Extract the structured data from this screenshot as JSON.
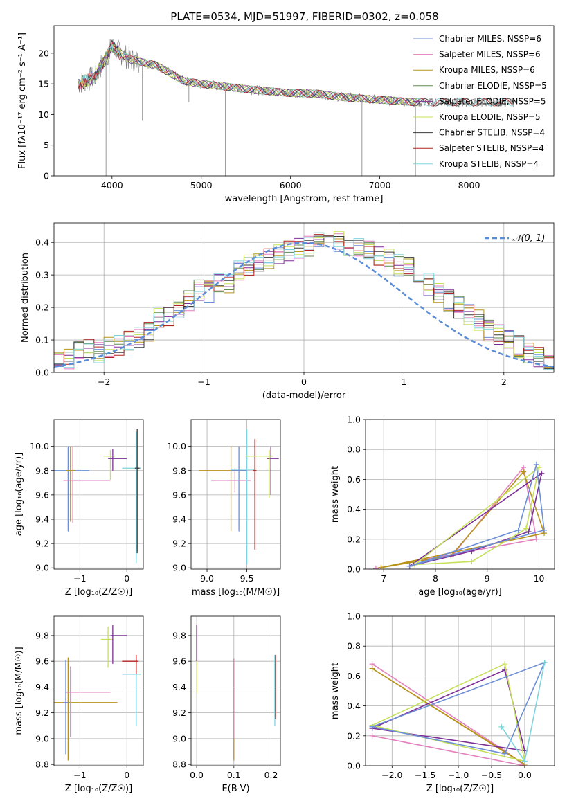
{
  "title": "PLATE=0534, MJD=51997, FIBERID=0302, z=0.058",
  "series_colors": [
    "#6b8ed6",
    "#e37fbd",
    "#b8931a",
    "#5f8a4e",
    "#7c2f96",
    "#c6e05a",
    "#3a3a3a",
    "#b22222",
    "#7fd3dc"
  ],
  "chart_data": [
    {
      "id": "spectrum",
      "type": "line",
      "title": "PLATE=0534, MJD=51997, FIBERID=0302, z=0.058",
      "xlabel": "wavelength [Angstrom, rest frame]",
      "ylabel": "Flux [fλ10⁻¹⁷ erg cm⁻² s⁻¹ A⁻¹]",
      "xlim": [
        3350,
        8950
      ],
      "ylim": [
        0,
        24.5
      ],
      "xticks": [
        4000,
        5000,
        6000,
        7000,
        8000
      ],
      "xticklabels": [
        "4000",
        "5000",
        "6000",
        "7000",
        "8000"
      ],
      "yticks": [
        0,
        5,
        10,
        15,
        20
      ],
      "yticklabels": [
        "0",
        "5",
        "10",
        "15",
        "20"
      ],
      "legend_position": "top-right",
      "legend": [
        "Chabrier MILES, NSSP=6",
        "Salpeter MILES, NSSP=6",
        "Kroupa MILES, NSSP=6",
        "Chabrier ELODIE, NSSP=5",
        "Salpeter ELODIE, NSSP=5",
        "Kroupa ELODIE, NSSP=5",
        "Chabrier STELIB, NSSP=4",
        "Salpeter STELIB, NSSP=4",
        "Kroupa STELIB, NSSP=4"
      ],
      "data_trend": {
        "x": [
          3600,
          3800,
          4000,
          4200,
          4500,
          4800,
          5000,
          5300,
          5600,
          6000,
          6300,
          6600,
          6900,
          7200,
          7400
        ],
        "y": [
          15,
          16,
          21,
          19,
          18,
          15.5,
          15,
          14.5,
          14,
          13.5,
          13.4,
          12.8,
          12.5,
          12.2,
          12
        ]
      }
    },
    {
      "id": "residuals",
      "type": "histogram",
      "xlabel": "(data-model)/error",
      "ylabel": "Normed distribution",
      "xlim": [
        -2.5,
        2.5
      ],
      "ylim": [
        0,
        0.46
      ],
      "xticks": [
        -2,
        -1,
        0,
        1,
        2
      ],
      "xticklabels": [
        "−2",
        "−1",
        "0",
        "1",
        "2"
      ],
      "yticks": [
        0,
        0.1,
        0.2,
        0.3,
        0.4
      ],
      "yticklabels": [
        "0.0",
        "0.1",
        "0.2",
        "0.3",
        "0.4"
      ],
      "legend": [
        "𝒩(0, 1)"
      ],
      "legend_position": "top-right",
      "bin_width": 0.1,
      "hist_values": [
        0.03,
        0.04,
        0.06,
        0.07,
        0.06,
        0.08,
        0.08,
        0.1,
        0.11,
        0.13,
        0.17,
        0.17,
        0.2,
        0.22,
        0.25,
        0.25,
        0.27,
        0.28,
        0.31,
        0.33,
        0.34,
        0.35,
        0.36,
        0.37,
        0.38,
        0.39,
        0.4,
        0.4,
        0.4,
        0.39,
        0.39,
        0.37,
        0.36,
        0.35,
        0.33,
        0.32,
        0.29,
        0.27,
        0.25,
        0.22,
        0.2,
        0.18,
        0.16,
        0.13,
        0.12,
        0.1,
        0.08,
        0.06,
        0.05,
        0.03
      ]
    },
    {
      "id": "age-vs-Z",
      "type": "errorbar",
      "xlabel": "Z [log₁₀(Z/Z☉)]",
      "ylabel": "age  [log₁₀(age/yr)]",
      "xlim": [
        -1.55,
        0.35
      ],
      "ylim": [
        8.99,
        10.22
      ],
      "xticks": [
        -1,
        0
      ],
      "xticklabels": [
        "−1",
        "0"
      ],
      "yticks": [
        9.0,
        9.2,
        9.4,
        9.6,
        9.8,
        10.0
      ],
      "yticklabels": [
        "9.0",
        "9.2",
        "9.4",
        "9.6",
        "9.8",
        "10.0"
      ],
      "points": [
        {
          "x": -1.25,
          "y": 9.8,
          "xerr": [
            0.3,
            0.45
          ],
          "yerr": [
            0.5,
            0.2
          ],
          "c": 0
        },
        {
          "x": -1.15,
          "y": 9.72,
          "xerr": [
            0.2,
            0.8
          ],
          "yerr": [
            0.35,
            0.28
          ],
          "c": 1
        },
        {
          "x": -0.35,
          "y": 9.92,
          "xerr": [
            0.15,
            0.1
          ],
          "yerr": [
            0.2,
            0.05
          ],
          "c": 5
        },
        {
          "x": -0.3,
          "y": 9.9,
          "xerr": [
            0.1,
            0.3
          ],
          "yerr": [
            0.1,
            0.08
          ],
          "c": 4
        },
        {
          "x": 0.2,
          "y": 9.82,
          "xerr": [
            0.3,
            0.1
          ],
          "yerr": [
            0.78,
            0.3
          ],
          "c": 8
        },
        {
          "x": 0.22,
          "y": 9.82,
          "xerr": [
            0.05,
            0.05
          ],
          "yerr": [
            0.7,
            0.32
          ],
          "c": 6
        },
        {
          "x": -1.2,
          "y": 9.8,
          "xerr": [
            0.1,
            0.1
          ],
          "yerr": [
            0.42,
            0.2
          ],
          "c": 2
        }
      ]
    },
    {
      "id": "age-vs-mass",
      "type": "errorbar",
      "xlabel": "mass [log₁₀(M/M☉)]",
      "ylabel": "",
      "xlim": [
        8.8,
        9.92
      ],
      "ylim": [
        8.99,
        10.22
      ],
      "xticks": [
        9.0,
        9.5
      ],
      "xticklabels": [
        "9.0",
        "9.5"
      ],
      "yticks": [
        9.0,
        9.2,
        9.4,
        9.6,
        9.8,
        10.0
      ],
      "yticklabels": [
        "9.0",
        "9.2",
        "9.4",
        "9.6",
        "9.8",
        "10.0"
      ],
      "points": [
        {
          "x": 9.3,
          "y": 9.8,
          "xerr": [
            0.4,
            0.2
          ],
          "yerr": [
            0.5,
            0.2
          ],
          "c": 2
        },
        {
          "x": 9.35,
          "y": 9.72,
          "xerr": [
            0.3,
            0.2
          ],
          "yerr": [
            0.1,
            0.1
          ],
          "c": 1
        },
        {
          "x": 9.5,
          "y": 9.81,
          "xerr": [
            0.2,
            0.1
          ],
          "yerr": [
            0.78,
            0.33
          ],
          "c": 8
        },
        {
          "x": 9.6,
          "y": 9.8,
          "xerr": [
            0.02,
            0.02
          ],
          "yerr": [
            0.65,
            0.26
          ],
          "c": 7
        },
        {
          "x": 9.8,
          "y": 9.9,
          "xerr": [
            0.05,
            0.1
          ],
          "yerr": [
            0.3,
            0.1
          ],
          "c": 4
        },
        {
          "x": 9.78,
          "y": 9.92,
          "xerr": [
            0.3,
            0.05
          ],
          "yerr": [
            0.35,
            0.05
          ],
          "c": 5
        },
        {
          "x": 9.4,
          "y": 9.8,
          "xerr": [
            0.1,
            0.1
          ],
          "yerr": [
            0.5,
            0.2
          ],
          "c": 0
        }
      ]
    },
    {
      "id": "weight-vs-age",
      "type": "line",
      "xlabel": "age  [log₁₀(age/yr)]",
      "ylabel": "mass weight",
      "xlim": [
        6.65,
        10.3
      ],
      "ylim": [
        0,
        1.0
      ],
      "xticks": [
        7,
        8,
        9,
        10
      ],
      "xticklabels": [
        "7",
        "8",
        "9",
        "10"
      ],
      "yticks": [
        0,
        0.2,
        0.4,
        0.6,
        0.8,
        1.0
      ],
      "yticklabels": [
        "0.0",
        "0.2",
        "0.4",
        "0.6",
        "0.8",
        "1.0"
      ],
      "series": [
        {
          "c": 1,
          "x": [
            6.85,
            8.35,
            9.7,
            9.95,
            6.85
          ],
          "y": [
            0.005,
            0.1,
            0.68,
            0.2,
            0.005
          ]
        },
        {
          "c": 2,
          "x": [
            6.95,
            8.3,
            9.7,
            10.1,
            6.95
          ],
          "y": [
            0.01,
            0.09,
            0.65,
            0.24,
            0.01
          ]
        },
        {
          "c": 4,
          "x": [
            7.5,
            8.7,
            9.8,
            10.05,
            7.5
          ],
          "y": [
            0.02,
            0.12,
            0.25,
            0.64,
            0.02
          ]
        },
        {
          "c": 5,
          "x": [
            7.6,
            8.7,
            9.75,
            10.0,
            7.6
          ],
          "y": [
            0.03,
            0.05,
            0.27,
            0.68,
            0.03
          ]
        },
        {
          "c": 0,
          "x": [
            7.5,
            9.6,
            9.95,
            10.1,
            7.5
          ],
          "y": [
            0.02,
            0.26,
            0.7,
            0.26,
            0.02
          ]
        }
      ]
    },
    {
      "id": "mass-vs-Z",
      "type": "errorbar",
      "xlabel": "Z [log₁₀(Z/Z☉)]",
      "ylabel": "mass [log₁₀(M/M☉)]",
      "xlim": [
        -1.55,
        0.35
      ],
      "ylim": [
        8.79,
        9.95
      ],
      "xticks": [
        -1,
        0
      ],
      "xticklabels": [
        "−1",
        "0"
      ],
      "yticks": [
        8.8,
        9.0,
        9.2,
        9.4,
        9.6,
        9.8
      ],
      "yticklabels": [
        "8.8",
        "9.0",
        "9.2",
        "9.4",
        "9.6",
        "9.8"
      ],
      "points": [
        {
          "x": -1.25,
          "y": 9.28,
          "xerr": [
            0.3,
            1.05
          ],
          "yerr": [
            0.45,
            0.35
          ],
          "c": 2
        },
        {
          "x": -1.2,
          "y": 9.36,
          "xerr": [
            0.1,
            0.85
          ],
          "yerr": [
            0.35,
            0.2
          ],
          "c": 1
        },
        {
          "x": -0.4,
          "y": 9.77,
          "xerr": [
            0.15,
            0.1
          ],
          "yerr": [
            0.22,
            0.1
          ],
          "c": 5
        },
        {
          "x": -0.3,
          "y": 9.8,
          "xerr": [
            0.05,
            0.3
          ],
          "yerr": [
            0.22,
            0.08
          ],
          "c": 4
        },
        {
          "x": 0.2,
          "y": 9.5,
          "xerr": [
            0.3,
            0.1
          ],
          "yerr": [
            0.4,
            0.1
          ],
          "c": 8
        },
        {
          "x": 0.2,
          "y": 9.6,
          "xerr": [
            0.3,
            0.05
          ],
          "yerr": [
            0.1,
            0.05
          ],
          "c": 7
        },
        {
          "x": -1.3,
          "y": 9.28,
          "xerr": [
            0.05,
            0.05
          ],
          "yerr": [
            0.4,
            0.33
          ],
          "c": 0
        }
      ]
    },
    {
      "id": "mass-vs-ebv",
      "type": "errorbar",
      "xlabel": "E(B-V)",
      "ylabel": "",
      "xlim": [
        -0.015,
        0.225
      ],
      "ylim": [
        8.79,
        9.95
      ],
      "xticks": [
        0.0,
        0.1,
        0.2
      ],
      "xticklabels": [
        "0.0",
        "0.1",
        "0.2"
      ],
      "yticks": [
        8.8,
        9.0,
        9.2,
        9.4,
        9.6,
        9.8
      ],
      "yticklabels": [
        "8.8",
        "9.0",
        "9.2",
        "9.4",
        "9.6",
        "9.8"
      ],
      "points": [
        {
          "x": 0.0,
          "y": 9.65,
          "xerr": [
            0,
            0
          ],
          "yerr": [
            0.3,
            0.22
          ],
          "c": 5
        },
        {
          "x": 0.0,
          "y": 9.7,
          "xerr": [
            0,
            0
          ],
          "yerr": [
            0.1,
            0.18
          ],
          "c": 4
        },
        {
          "x": 0.1,
          "y": 9.25,
          "xerr": [
            0,
            0
          ],
          "yerr": [
            0.42,
            0.37
          ],
          "c": 2
        },
        {
          "x": 0.1,
          "y": 9.3,
          "xerr": [
            0,
            0
          ],
          "yerr": [
            0.3,
            0.32
          ],
          "c": 1
        },
        {
          "x": 0.21,
          "y": 9.35,
          "xerr": [
            0,
            0
          ],
          "yerr": [
            0.25,
            0.3
          ],
          "c": 8
        },
        {
          "x": 0.212,
          "y": 9.4,
          "xerr": [
            0,
            0
          ],
          "yerr": [
            0.25,
            0.25
          ],
          "c": 7
        }
      ]
    },
    {
      "id": "weight-vs-Z",
      "type": "line",
      "xlabel": "Z [log₁₀(Z/Z☉)]",
      "ylabel": "mass weight",
      "xlim": [
        -2.4,
        0.45
      ],
      "ylim": [
        0,
        1.0
      ],
      "xticks": [
        -2.0,
        -1.5,
        -1.0,
        -0.5,
        0.0
      ],
      "xticklabels": [
        "−2.0",
        "−1.5",
        "−1.0",
        "−0.5",
        "0.0"
      ],
      "yticks": [
        0,
        0.2,
        0.4,
        0.6,
        0.8,
        1.0
      ],
      "yticklabels": [
        "0.0",
        "0.2",
        "0.4",
        "0.6",
        "0.8",
        "1.0"
      ],
      "series": [
        {
          "c": 1,
          "x": [
            -2.3,
            -0.3,
            0.0,
            -2.3
          ],
          "y": [
            0.68,
            0.1,
            0.0,
            0.2
          ]
        },
        {
          "c": 2,
          "x": [
            -2.3,
            0.0,
            -0.3,
            -2.3
          ],
          "y": [
            0.65,
            0.01,
            0.09,
            0.65
          ]
        },
        {
          "c": 4,
          "x": [
            -2.3,
            -0.3,
            0.0,
            -2.3
          ],
          "y": [
            0.25,
            0.64,
            0.1,
            0.25
          ]
        },
        {
          "c": 5,
          "x": [
            -2.3,
            -0.3,
            0.0,
            -2.3
          ],
          "y": [
            0.27,
            0.68,
            0.03,
            0.27
          ]
        },
        {
          "c": 0,
          "x": [
            -2.3,
            -0.3,
            0.3,
            -2.3
          ],
          "y": [
            0.26,
            0.08,
            0.69,
            0.26
          ]
        },
        {
          "c": 8,
          "x": [
            -0.35,
            0.0,
            0.3
          ],
          "y": [
            0.26,
            0.03,
            0.69
          ]
        }
      ]
    }
  ]
}
